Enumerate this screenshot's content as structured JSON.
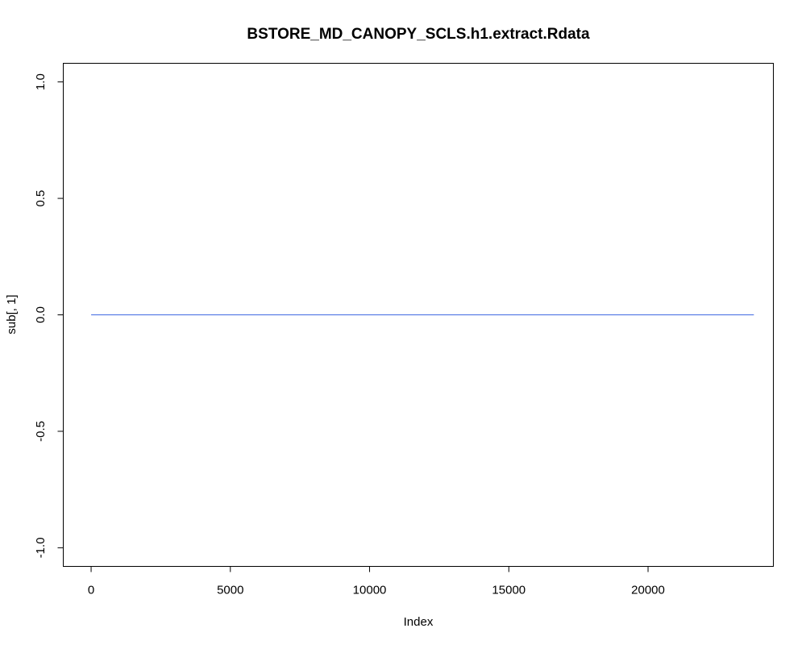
{
  "chart_data": {
    "type": "line",
    "title": "BSTORE_MD_CANOPY_SCLS.h1.extract.Rdata",
    "xlabel": "Index",
    "ylabel": "sub[, 1]",
    "xlim": [
      -1000,
      24500
    ],
    "ylim": [
      -1.08,
      1.08
    ],
    "x_ticks": [
      0,
      5000,
      10000,
      15000,
      20000
    ],
    "x_tick_labels": [
      "0",
      "5000",
      "10000",
      "15000",
      "20000"
    ],
    "y_ticks": [
      -1.0,
      -0.5,
      0.0,
      0.5,
      1.0
    ],
    "y_tick_labels": [
      "-1.0",
      "-0.5",
      "0.0",
      "0.5",
      "1.0"
    ],
    "grid": false,
    "series": [
      {
        "color": "#4169E1",
        "x": [
          1,
          23800
        ],
        "y": [
          0,
          0
        ]
      }
    ]
  }
}
